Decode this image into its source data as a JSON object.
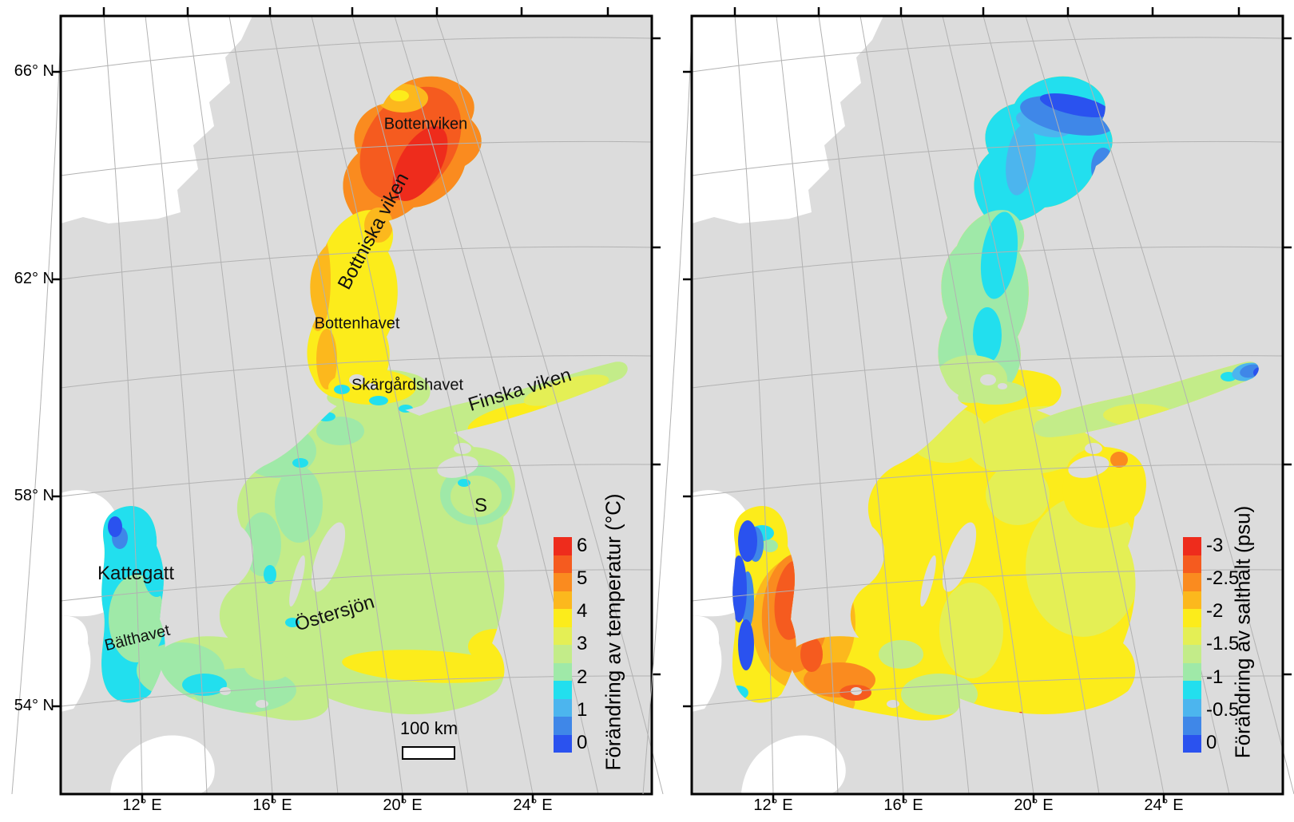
{
  "panels": {
    "temperature": {
      "legend_title": "Förändring av temperatur (°C)",
      "legend_ticks": [
        "6",
        "5",
        "4",
        "3",
        "2",
        "1",
        "0"
      ],
      "sea_labels": {
        "bottenviken": "Bottenviken",
        "bottniska_viken": "Bottniska viken",
        "bottenhavet": "Bottenhavet",
        "skargardshavet": "Skärgårdshavet",
        "finska_viken": "Finska viken",
        "s": "S",
        "kattegatt": "Kattegatt",
        "balthavet": "Bälthavet",
        "ostersjon": "Östersjön"
      },
      "scalebar_label": "100 km",
      "lat_ticks": [
        "66° N",
        "62° N",
        "58° N",
        "54° N"
      ],
      "lon_ticks": [
        "12° E",
        "16° E",
        "20° E",
        "24° E"
      ]
    },
    "salinity": {
      "legend_title": "Förändring av salthalt (psu)",
      "legend_ticks": [
        "-3",
        "-2.5",
        "-2",
        "-1.5",
        "-1",
        "-0.5",
        "0"
      ],
      "lon_ticks": [
        "12° E",
        "16° E",
        "20° E",
        "24° E"
      ]
    }
  },
  "palette": {
    "stops": [
      "#ee2c1c",
      "#f55b1f",
      "#fa8b1f",
      "#fcb81d",
      "#fcec1b",
      "#e4ef55",
      "#c3ec89",
      "#9fe9a8",
      "#22dfee",
      "#4cb5ee",
      "#3f87e8",
      "#2a52ef"
    ],
    "land": "#dcdcdc",
    "outside_domain": "#ffffff",
    "graticule": "#b2b2b2",
    "frame": "#000000"
  }
}
